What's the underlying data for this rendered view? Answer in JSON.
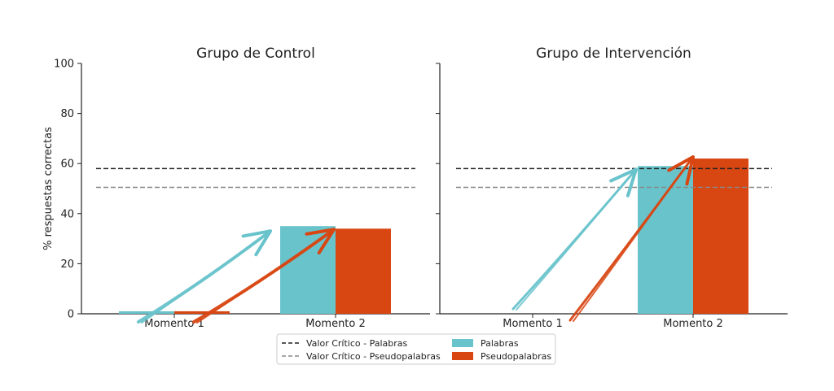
{
  "chart_data": {
    "type": "bar",
    "ylabel": "% respuestas correctas",
    "ylim": [
      0,
      100
    ],
    "yticks": [
      0,
      20,
      40,
      60,
      80,
      100
    ],
    "grid": false,
    "legend_placement": "bottom-center",
    "critical_values": [
      {
        "name": "Valor Crítico - Palabras",
        "value": 58,
        "color": "#222222"
      },
      {
        "name": "Valor Crítico - Pseudopalabras",
        "value": 50.5,
        "color": "#888888"
      }
    ],
    "series_styles": [
      {
        "name": "Palabras",
        "color": "#68C3CB"
      },
      {
        "name": "Pseudopalabras",
        "color": "#D84612"
      }
    ],
    "panels": [
      {
        "title": "Grupo de Control",
        "categories": [
          "Momento 1",
          "Momento 2"
        ],
        "series": [
          {
            "name": "Palabras",
            "values": [
              1,
              35
            ]
          },
          {
            "name": "Pseudopalabras",
            "values": [
              1,
              34
            ]
          }
        ]
      },
      {
        "title": "Grupo de Intervención",
        "categories": [
          "Momento 1",
          "Momento 2"
        ],
        "series": [
          {
            "name": "Palabras",
            "values": [
              0,
              59
            ]
          },
          {
            "name": "Pseudopalabras",
            "values": [
              0,
              62
            ]
          }
        ]
      }
    ]
  }
}
